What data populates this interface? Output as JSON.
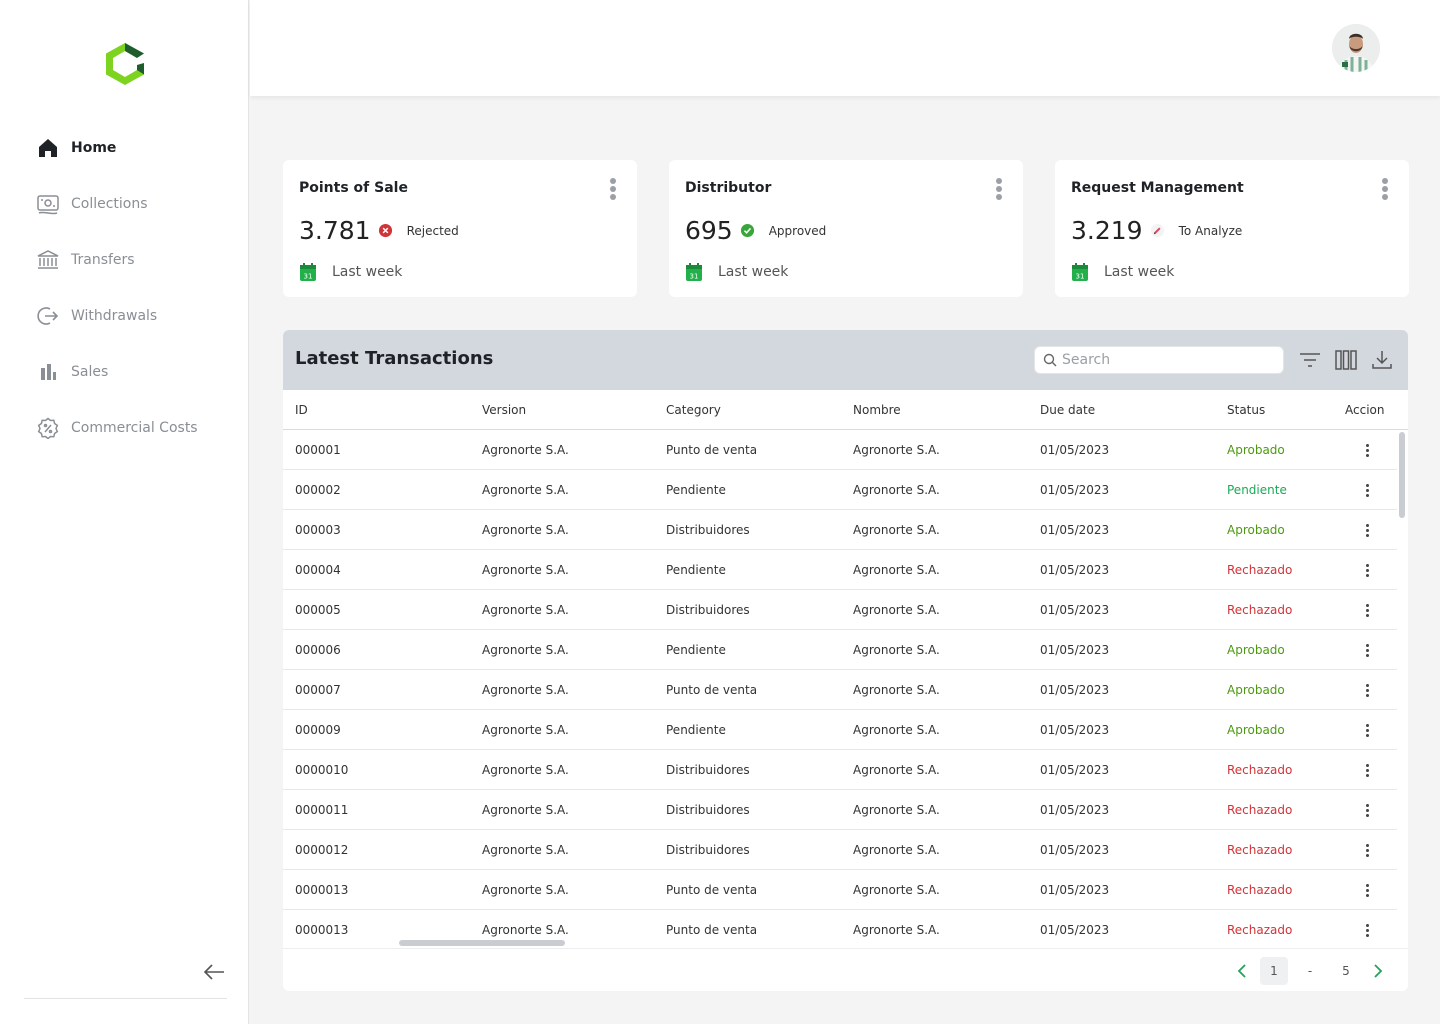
{
  "sidebar": {
    "items": [
      {
        "label": "Home",
        "icon": "home-icon",
        "active": true
      },
      {
        "label": "Collections",
        "icon": "money-icon"
      },
      {
        "label": "Transfers",
        "icon": "bank-icon"
      },
      {
        "label": "Withdrawals",
        "icon": "logout-arrow-icon"
      },
      {
        "label": "Sales",
        "icon": "bar-chart-icon"
      },
      {
        "label": "Commercial Costs",
        "icon": "percent-badge-icon"
      }
    ]
  },
  "colors": {
    "brand_green": "#7ed321",
    "brand_dark": "#1f5c2e",
    "approved": "#4b9a0f",
    "pending": "#1aaa55",
    "rejected": "#d13438"
  },
  "cards": [
    {
      "title": "Points of Sale",
      "value": "3.781",
      "status": "Rejected",
      "period": "Last week"
    },
    {
      "title": "Distributor",
      "value": "695",
      "status": "Approved",
      "period": "Last week"
    },
    {
      "title": "Request Management",
      "value": "3.219",
      "status": "To Analyze",
      "period": "Last week"
    }
  ],
  "calendar_day": "31",
  "transactions": {
    "title": "Latest Transactions",
    "search_placeholder": "Search",
    "columns": [
      "ID",
      "Version",
      "Category",
      "Nombre",
      "Due date",
      "Status",
      "Accion"
    ],
    "rows": [
      {
        "id": "000001",
        "version": "Agronorte S.A.",
        "category": "Punto de  venta",
        "nombre": "Agronorte S.A.",
        "due": "01/05/2023",
        "status": "Aprobado"
      },
      {
        "id": "000002",
        "version": "Agronorte S.A.",
        "category": "Pendiente",
        "nombre": "Agronorte S.A.",
        "due": "01/05/2023",
        "status": "Pendiente"
      },
      {
        "id": "000003",
        "version": "Agronorte S.A.",
        "category": "Distribuidores",
        "nombre": "Agronorte S.A.",
        "due": "01/05/2023",
        "status": "Aprobado"
      },
      {
        "id": "000004",
        "version": "Agronorte S.A.",
        "category": "Pendiente",
        "nombre": "Agronorte S.A.",
        "due": "01/05/2023",
        "status": "Rechazado"
      },
      {
        "id": "000005",
        "version": "Agronorte S.A.",
        "category": "Distribuidores",
        "nombre": "Agronorte S.A.",
        "due": "01/05/2023",
        "status": "Rechazado"
      },
      {
        "id": "000006",
        "version": "Agronorte S.A.",
        "category": "Pendiente",
        "nombre": "Agronorte S.A.",
        "due": "01/05/2023",
        "status": "Aprobado"
      },
      {
        "id": "000007",
        "version": "Agronorte S.A.",
        "category": "Punto de  venta",
        "nombre": "Agronorte S.A.",
        "due": "01/05/2023",
        "status": "Aprobado"
      },
      {
        "id": "000009",
        "version": "Agronorte S.A.",
        "category": "Pendiente",
        "nombre": "Agronorte S.A.",
        "due": "01/05/2023",
        "status": "Aprobado"
      },
      {
        "id": "0000010",
        "version": "Agronorte S.A.",
        "category": "Distribuidores",
        "nombre": "Agronorte S.A.",
        "due": "01/05/2023",
        "status": "Rechazado"
      },
      {
        "id": "0000011",
        "version": "Agronorte S.A.",
        "category": "Distribuidores",
        "nombre": "Agronorte S.A.",
        "due": "01/05/2023",
        "status": "Rechazado"
      },
      {
        "id": "0000012",
        "version": "Agronorte S.A.",
        "category": "Distribuidores",
        "nombre": "Agronorte S.A.",
        "due": "01/05/2023",
        "status": "Rechazado"
      },
      {
        "id": "0000013",
        "version": "Agronorte S.A.",
        "category": "Punto de  venta",
        "nombre": "Agronorte S.A.",
        "due": "01/05/2023",
        "status": "Rechazado"
      },
      {
        "id": "0000013",
        "version": "Agronorte S.A.",
        "category": "Punto de  venta",
        "nombre": "Agronorte S.A.",
        "due": "01/05/2023",
        "status": "Rechazado"
      }
    ]
  },
  "pagination": {
    "current": "1",
    "separator": "-",
    "last": "5"
  }
}
